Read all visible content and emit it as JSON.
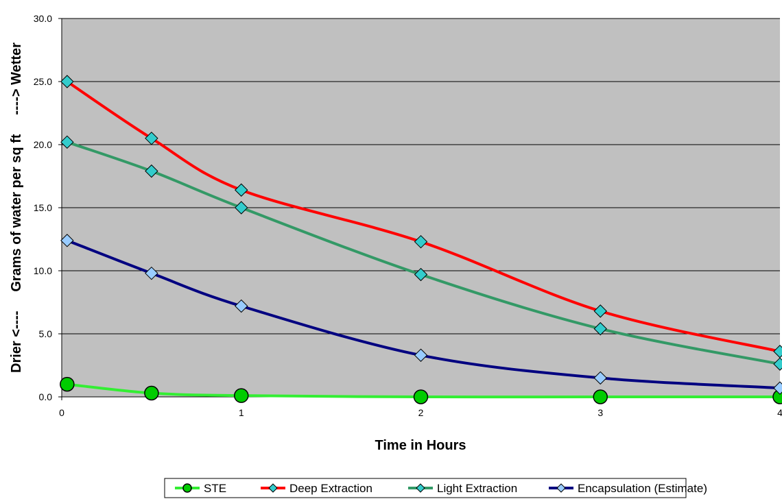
{
  "chart_data": {
    "type": "line",
    "title": "",
    "xlabel": "Time in Hours",
    "ylabel": "Drier <----     Grams of water per sq ft     ----> Wetter",
    "xlim": [
      0,
      4
    ],
    "ylim": [
      0,
      30
    ],
    "x_ticks": [
      "0",
      "1",
      "2",
      "3",
      "4"
    ],
    "y_ticks": [
      "0.0",
      "5.0",
      "10.0",
      "15.0",
      "20.0",
      "25.0",
      "30.0"
    ],
    "grid": "horizontal",
    "legend_position": "bottom",
    "plot_background": "#c0c0c0",
    "series": [
      {
        "name": "STE",
        "color": "#33ee33",
        "marker": "circle",
        "marker_color": "#00cc00",
        "x": [
          0.03,
          0.5,
          1,
          2,
          3,
          4
        ],
        "y": [
          1.0,
          0.3,
          0.1,
          0.0,
          0.0,
          0.0
        ]
      },
      {
        "name": "Deep Extraction",
        "color": "#ff0000",
        "marker": "diamond",
        "marker_color": "#33cccc",
        "x": [
          0.03,
          0.5,
          1,
          2,
          3,
          4
        ],
        "y": [
          25.0,
          20.5,
          16.4,
          12.3,
          6.8,
          3.6
        ]
      },
      {
        "name": "Light Extraction",
        "color": "#339966",
        "marker": "diamond",
        "marker_color": "#33cccc",
        "x": [
          0.03,
          0.5,
          1,
          2,
          3,
          4
        ],
        "y": [
          20.2,
          17.9,
          15.0,
          9.7,
          5.4,
          2.6
        ]
      },
      {
        "name": "Encapsulation (Estimate)",
        "color": "#000080",
        "marker": "diamond",
        "marker_color": "#99ccff",
        "x": [
          0.03,
          0.5,
          1,
          2,
          3,
          4
        ],
        "y": [
          12.4,
          9.8,
          7.2,
          3.3,
          1.5,
          0.7
        ]
      }
    ]
  }
}
